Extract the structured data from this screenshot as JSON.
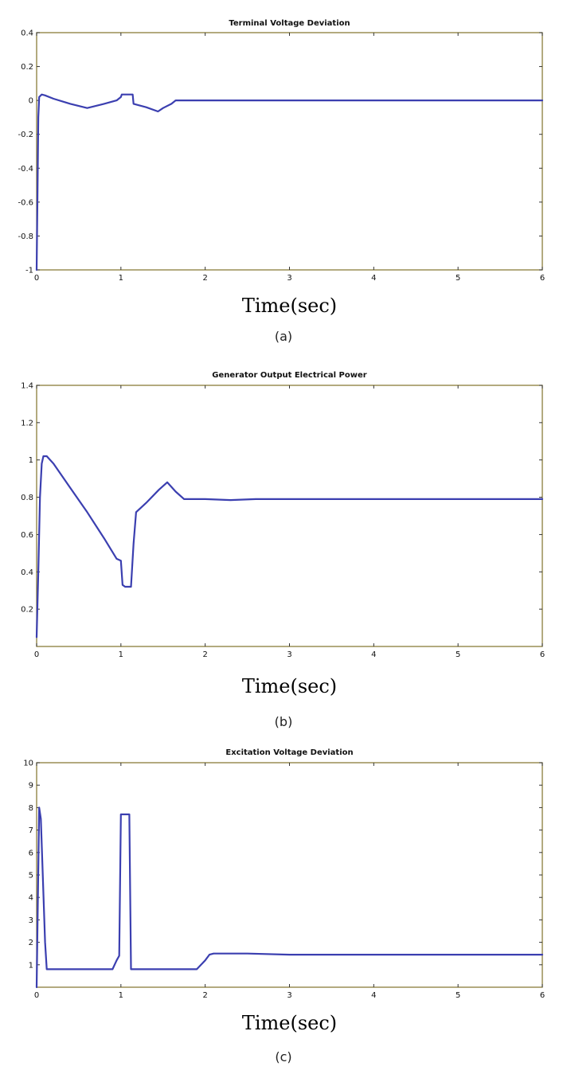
{
  "chart_data": [
    {
      "type": "line",
      "title": "Terminal Voltage Deviation",
      "xlabel": "Time(sec)",
      "ylabel": "",
      "caption": "(a)",
      "xlim": [
        0,
        6
      ],
      "ylim": [
        -1,
        0.4
      ],
      "xticks": [
        "0",
        "1",
        "2",
        "3",
        "4",
        "5",
        "6"
      ],
      "yticks": [
        "-1",
        "-0.8",
        "-0.6",
        "-0.4",
        "-0.2",
        "0",
        "0.2",
        "0.4"
      ],
      "grid": false,
      "colors": {
        "line": "#3b3fb0",
        "axes_frame": "#8a7d3a"
      },
      "series": [
        {
          "x": [
            0,
            0.01,
            0.02,
            0.03,
            0.06,
            0.1,
            0.2,
            0.4,
            0.6,
            0.8,
            0.95,
            1.0,
            1.01,
            1.14,
            1.15,
            1.3,
            1.44,
            1.5,
            1.6,
            1.65,
            2.0,
            3.0,
            4.0,
            5.0,
            6.0
          ],
          "y": [
            -1.0,
            -0.55,
            -0.1,
            0.02,
            0.035,
            0.03,
            0.01,
            -0.02,
            -0.045,
            -0.02,
            0.0,
            0.02,
            0.035,
            0.035,
            -0.02,
            -0.04,
            -0.065,
            -0.045,
            -0.02,
            0.0,
            0.0,
            0.0,
            0.0,
            0.0,
            0.0
          ]
        }
      ]
    },
    {
      "type": "line",
      "title": "Generator Output Electrical Power",
      "xlabel": "Time(sec)",
      "ylabel": "",
      "caption": "(b)",
      "xlim": [
        0,
        6
      ],
      "ylim": [
        0,
        1.4
      ],
      "xticks": [
        "0",
        "1",
        "2",
        "3",
        "4",
        "5",
        "6"
      ],
      "yticks": [
        "0.2",
        "0.4",
        "0.6",
        "0.8",
        "1",
        "1.2",
        "1.4"
      ],
      "grid": false,
      "colors": {
        "line": "#3b3fb0",
        "axes_frame": "#8a7d3a"
      },
      "series": [
        {
          "x": [
            0,
            0.02,
            0.04,
            0.06,
            0.08,
            0.12,
            0.2,
            0.4,
            0.6,
            0.8,
            0.95,
            1.0,
            1.02,
            1.05,
            1.12,
            1.15,
            1.18,
            1.3,
            1.45,
            1.55,
            1.65,
            1.75,
            2.0,
            2.3,
            2.6,
            3.0,
            4.0,
            5.0,
            6.0
          ],
          "y": [
            0.05,
            0.4,
            0.8,
            0.98,
            1.02,
            1.02,
            0.98,
            0.85,
            0.72,
            0.58,
            0.47,
            0.46,
            0.33,
            0.32,
            0.32,
            0.55,
            0.72,
            0.77,
            0.84,
            0.88,
            0.83,
            0.79,
            0.79,
            0.785,
            0.79,
            0.79,
            0.79,
            0.79,
            0.79
          ]
        }
      ]
    },
    {
      "type": "line",
      "title": "Excitation Voltage Deviation",
      "xlabel": "Time(sec)",
      "ylabel": "",
      "caption": "(c)",
      "xlim": [
        0,
        6
      ],
      "ylim": [
        0,
        10
      ],
      "xticks": [
        "0",
        "1",
        "2",
        "3",
        "4",
        "5",
        "6"
      ],
      "yticks": [
        "1",
        "2",
        "3",
        "4",
        "5",
        "6",
        "7",
        "8",
        "9",
        "10"
      ],
      "grid": false,
      "colors": {
        "line": "#3b3fb0",
        "axes_frame": "#8a7d3a"
      },
      "series": [
        {
          "x": [
            0,
            0.03,
            0.05,
            0.1,
            0.12,
            0.15,
            0.5,
            0.9,
            0.95,
            0.98,
            1.0,
            1.1,
            1.12,
            1.15,
            1.5,
            1.9,
            2.0,
            2.05,
            2.1,
            2.5,
            3.0,
            4.0,
            5.0,
            6.0
          ],
          "y": [
            0.0,
            8.0,
            7.5,
            2.0,
            0.8,
            0.8,
            0.8,
            0.8,
            1.2,
            1.4,
            7.7,
            7.7,
            0.8,
            0.8,
            0.8,
            0.8,
            1.2,
            1.45,
            1.5,
            1.5,
            1.45,
            1.45,
            1.45,
            1.45
          ]
        }
      ]
    }
  ]
}
